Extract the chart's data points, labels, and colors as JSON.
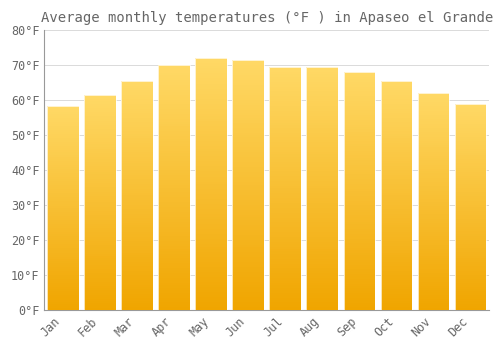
{
  "title": "Average monthly temperatures (°F ) in Apaseo el Grande",
  "months": [
    "Jan",
    "Feb",
    "Mar",
    "Apr",
    "May",
    "Jun",
    "Jul",
    "Aug",
    "Sep",
    "Oct",
    "Nov",
    "Dec"
  ],
  "values": [
    58.5,
    61.5,
    65.5,
    70.0,
    72.0,
    71.5,
    69.5,
    69.5,
    68.0,
    65.5,
    62.0,
    59.0
  ],
  "bar_color_top": "#FFD966",
  "bar_color_bottom": "#F0A500",
  "bar_edge_color": "#FFFFFF",
  "background_color": "#FFFFFF",
  "grid_color": "#CCCCCC",
  "text_color": "#666666",
  "ylim": [
    0,
    80
  ],
  "yticks": [
    0,
    10,
    20,
    30,
    40,
    50,
    60,
    70,
    80
  ],
  "title_fontsize": 10,
  "tick_fontsize": 8.5,
  "bar_width": 0.85
}
